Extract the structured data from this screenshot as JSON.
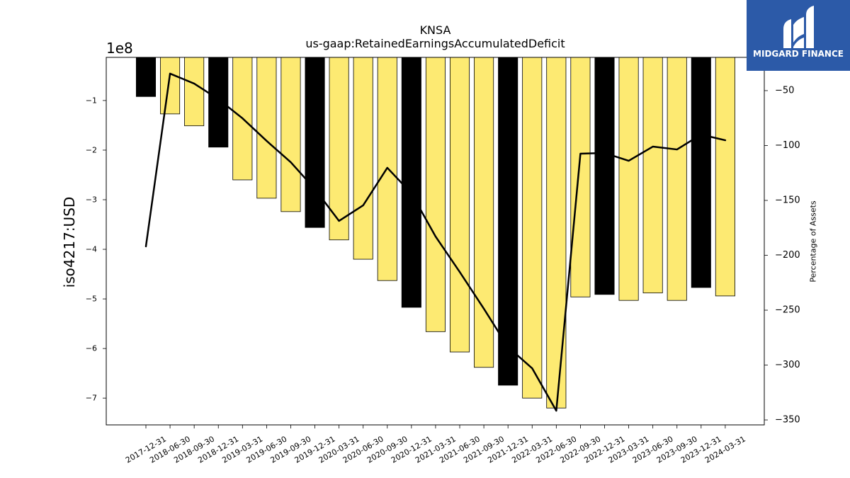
{
  "logo": {
    "text": "MIDGARD FINANCE",
    "icon": "midgard-m-icon",
    "background_color": "#2c5aa8",
    "foreground_color": "#ffffff"
  },
  "chart_data": {
    "type": "bar",
    "title": "KNSA",
    "subtitle": "us-gaap:RetainedEarningsAccumulatedDeficit",
    "ylabel": "iso4217:USD",
    "y_offset_text": "1e8",
    "y2label": "Percentage of Assets",
    "categories": [
      "2017-12-31",
      "2018-06-30",
      "2018-09-30",
      "2018-12-31",
      "2019-03-31",
      "2019-06-30",
      "2019-09-30",
      "2019-12-31",
      "2020-03-31",
      "2020-06-30",
      "2020-09-30",
      "2020-12-31",
      "2021-03-31",
      "2021-06-30",
      "2021-09-30",
      "2021-12-31",
      "2022-03-31",
      "2022-06-30",
      "2022-09-30",
      "2022-12-31",
      "2023-03-31",
      "2023-06-30",
      "2023-09-30",
      "2023-12-31",
      "2024-03-31"
    ],
    "series": [
      {
        "type": "bar",
        "axis": "left",
        "values": [
          -92000000,
          -127000000,
          -151000000,
          -194000000,
          -260000000,
          -297000000,
          -324000000,
          -356000000,
          -381000000,
          -420000000,
          -463000000,
          -517000000,
          -566000000,
          -607000000,
          -638000000,
          -674000000,
          -700000000,
          -720000000,
          -496000000,
          -491000000,
          -503000000,
          -488000000,
          -503000000,
          -477000000,
          -494000000
        ],
        "colors": [
          "#000000",
          "#fdea72",
          "#fdea72",
          "#000000",
          "#fdea72",
          "#fdea72",
          "#fdea72",
          "#000000",
          "#fdea72",
          "#fdea72",
          "#fdea72",
          "#000000",
          "#fdea72",
          "#fdea72",
          "#fdea72",
          "#000000",
          "#fdea72",
          "#fdea72",
          "#fdea72",
          "#000000",
          "#fdea72",
          "#fdea72",
          "#fdea72",
          "#000000",
          "#fdea72"
        ],
        "edge_color": "#000000"
      },
      {
        "type": "line",
        "axis": "right",
        "values": [
          -191.9,
          -34.5,
          -43.6,
          -57.8,
          -75.2,
          -95.8,
          -115.2,
          -139.7,
          -168.7,
          -154.5,
          -120.3,
          -143.6,
          -182.9,
          -215.2,
          -248.7,
          -283.6,
          -302.9,
          -341.6,
          -107.4,
          -106.8,
          -113.9,
          -101.0,
          -103.6,
          -90.0,
          -95.2
        ],
        "color": "#000000"
      }
    ],
    "ylim": [
      -754000000,
      -13000000
    ],
    "yticks": [
      -100000000,
      -200000000,
      -300000000,
      -400000000,
      -500000000,
      -600000000,
      -700000000
    ],
    "ytick_labels": [
      "−1",
      "−2",
      "−3",
      "−4",
      "−5",
      "−6",
      "−7"
    ],
    "y2lim": [
      -354.5,
      -19.7
    ],
    "y2ticks": [
      -50,
      -100,
      -150,
      -200,
      -250,
      -300,
      -350
    ],
    "y2tick_labels": [
      "−50",
      "−100",
      "−150",
      "−200",
      "−250",
      "−300",
      "−350"
    ],
    "grid": false
  }
}
